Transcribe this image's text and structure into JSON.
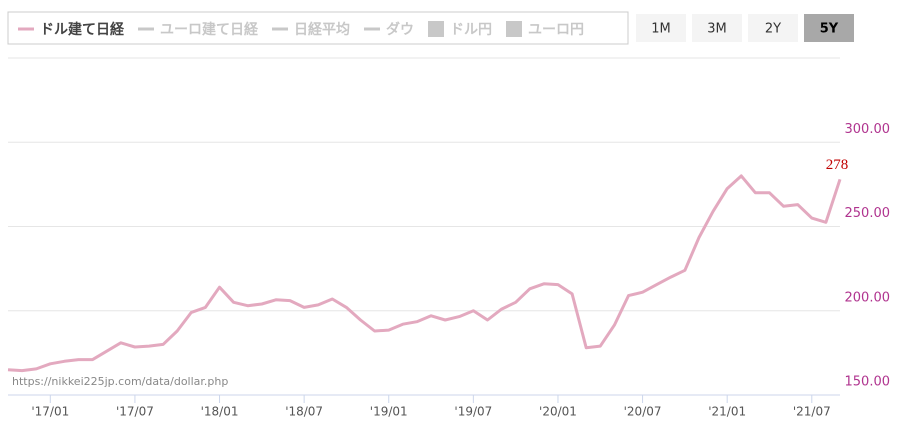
{
  "chart_data": {
    "type": "line",
    "categories": [
      null,
      null,
      null,
      "'17/01",
      null,
      null,
      null,
      null,
      null,
      "'17/07",
      null,
      null,
      null,
      null,
      null,
      "'18/01",
      null,
      null,
      null,
      null,
      null,
      "'18/07",
      null,
      null,
      null,
      null,
      null,
      "'19/01",
      null,
      null,
      null,
      null,
      null,
      "'19/07",
      null,
      null,
      null,
      null,
      null,
      "'20/01",
      null,
      null,
      null,
      null,
      null,
      "'20/07",
      null,
      null,
      null,
      null,
      null,
      "'21/01",
      null,
      null,
      null,
      null,
      null,
      "'21/07",
      null,
      null
    ],
    "series": [
      {
        "name": "ドル建て日経",
        "color": "#e3a9bf",
        "symbol": "line",
        "visible": true,
        "values": [
          165,
          164.5,
          165.5,
          168.5,
          170,
          171,
          171,
          176,
          181,
          178.5,
          179,
          180,
          188,
          199,
          202,
          214,
          205,
          203,
          204,
          206.5,
          206,
          202,
          203.5,
          207,
          202,
          194.5,
          188,
          188.5,
          192,
          193.5,
          197,
          194.5,
          196.5,
          200,
          194.5,
          201,
          205,
          213,
          216,
          215.5,
          210,
          178,
          179,
          191.5,
          209,
          211,
          215.5,
          220,
          224,
          243.5,
          259,
          272.5,
          280,
          270,
          270,
          262,
          263,
          255,
          252.5,
          278
        ]
      },
      {
        "name": "ユーロ建て日経",
        "color": "#c8c8c8",
        "symbol": "line",
        "visible": false
      },
      {
        "name": "日経平均",
        "color": "#c8c8c8",
        "symbol": "line",
        "visible": false
      },
      {
        "name": "ダウ",
        "color": "#c8c8c8",
        "symbol": "line",
        "visible": false
      },
      {
        "name": "ドル円",
        "color": "#c8c8c8",
        "symbol": "square",
        "visible": false
      },
      {
        "name": "ユーロ円",
        "color": "#c8c8c8",
        "symbol": "square",
        "visible": false
      }
    ],
    "ylim": [
      150,
      350
    ],
    "yticks": [
      {
        "value": 150,
        "label": "150.00"
      },
      {
        "value": 200,
        "label": "200.00"
      },
      {
        "value": 250,
        "label": "250.00"
      },
      {
        "value": 300,
        "label": "300.00"
      }
    ],
    "grid": true,
    "range_buttons": [
      "1M",
      "3M",
      "2Y",
      "5Y"
    ],
    "active_range": "5Y",
    "source": "https://nikkei225jp.com/data/dollar.php"
  }
}
